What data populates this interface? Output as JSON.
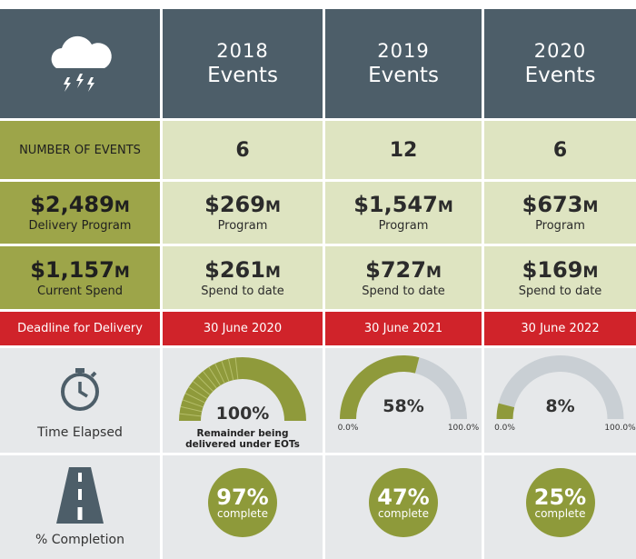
{
  "columns": [
    {
      "year": "2018",
      "label": "Events"
    },
    {
      "year": "2019",
      "label": "Events"
    },
    {
      "year": "2020",
      "label": "Events"
    }
  ],
  "rows": {
    "events": {
      "label": "NUMBER OF EVENTS",
      "values": [
        6,
        12,
        6
      ]
    },
    "program": {
      "total": {
        "amount": "$2,489",
        "unit": "M",
        "label": "Delivery Program"
      },
      "values": [
        {
          "amount": "$269",
          "unit": "M",
          "label": "Program"
        },
        {
          "amount": "$1,547",
          "unit": "M",
          "label": "Program"
        },
        {
          "amount": "$673",
          "unit": "M",
          "label": "Program"
        }
      ]
    },
    "spend": {
      "total": {
        "amount": "$1,157",
        "unit": "M",
        "label": "Current Spend"
      },
      "values": [
        {
          "amount": "$261",
          "unit": "M",
          "label": "Spend to date"
        },
        {
          "amount": "$727",
          "unit": "M",
          "label": "Spend to date"
        },
        {
          "amount": "$169",
          "unit": "M",
          "label": "Spend to date"
        }
      ]
    },
    "deadline": {
      "label": "Deadline for Delivery",
      "values": [
        "30 June 2020",
        "30 June 2021",
        "30 June 2022"
      ]
    },
    "time_elapsed": {
      "label": "Time Elapsed",
      "gauges": [
        {
          "value": 100,
          "label": "100%",
          "note": "Remainder being delivered under EOTs"
        },
        {
          "value": 58,
          "label": "58%",
          "min_label": "0.0%",
          "max_label": "100.0%"
        },
        {
          "value": 8,
          "label": "8%",
          "min_label": "0.0%",
          "max_label": "100.0%"
        }
      ]
    },
    "completion": {
      "label": "% Completion",
      "values": [
        {
          "percent": "97%",
          "label": "complete"
        },
        {
          "percent": "47%",
          "label": "complete"
        },
        {
          "percent": "25%",
          "label": "complete"
        }
      ]
    }
  }
}
